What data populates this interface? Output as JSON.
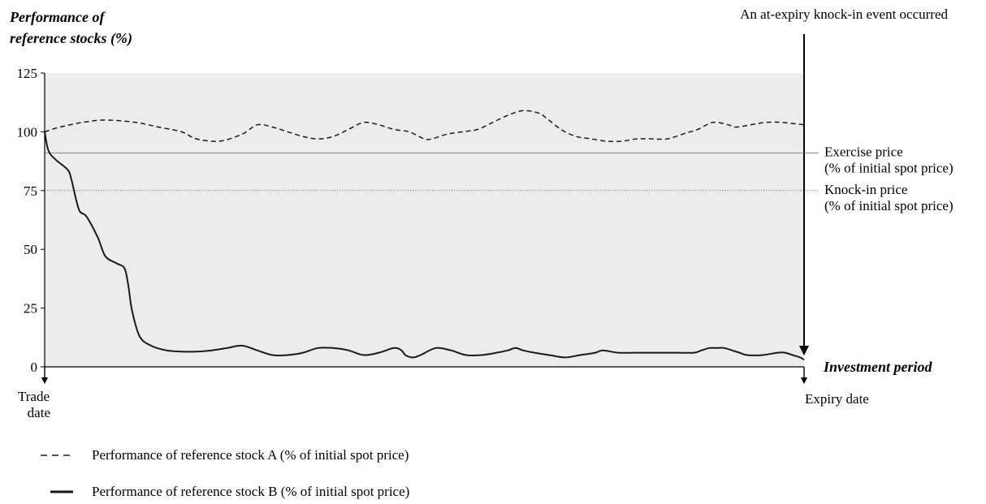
{
  "chart_data": {
    "type": "line",
    "ylabel_lines": [
      "Performance of",
      "reference stocks (%)"
    ],
    "xlabel": "Investment period",
    "yticks": [
      0,
      25,
      50,
      75,
      100,
      125
    ],
    "ylim": [
      0,
      125
    ],
    "xlim": [
      0,
      100
    ],
    "x_endpoint_labels": {
      "start": [
        "Trade",
        "date"
      ],
      "end": [
        "Expiry date"
      ]
    },
    "reference_lines": [
      {
        "name": "exercise",
        "value": 91,
        "label_lines": [
          "Exercise price",
          "(% of initial spot price)"
        ]
      },
      {
        "name": "knockin",
        "value": 75,
        "label_lines": [
          "Knock-in price",
          "(% of initial spot price)"
        ]
      }
    ],
    "annotation": {
      "text": "An at-expiry knock-in event occurred",
      "x": 100
    },
    "grid": false,
    "series": [
      {
        "name": "Performance of reference stock A (% of initial spot price)",
        "style": "dashed",
        "x": [
          0,
          2,
          5,
          8,
          12,
          15,
          18,
          20,
          23,
          26,
          28,
          30,
          32,
          34,
          36,
          38,
          40,
          42,
          44,
          46,
          48,
          50,
          51,
          53,
          55,
          57,
          59,
          61,
          63,
          65,
          66,
          68,
          70,
          72,
          74,
          76,
          78,
          80,
          82,
          84,
          85,
          86,
          88,
          90,
          91,
          93,
          95,
          97,
          100
        ],
        "y": [
          100,
          102,
          104,
          105,
          104,
          102,
          100,
          97,
          96,
          99,
          103,
          102,
          100,
          98,
          97,
          98,
          101,
          104,
          103,
          101,
          100,
          97,
          97,
          99,
          100,
          101,
          104,
          107,
          109,
          108,
          106,
          101,
          98,
          97,
          96,
          96,
          97,
          97,
          97,
          99,
          100,
          101,
          104,
          103,
          102,
          103,
          104,
          104,
          103
        ]
      },
      {
        "name": "Performance of reference stock B (% of initial spot price)",
        "style": "solid",
        "x": [
          0,
          0.5,
          1.5,
          3,
          3.5,
          4.5,
          5.5,
          7,
          8,
          9.5,
          10.5,
          11,
          11.5,
          12.5,
          14,
          16,
          18,
          20,
          22,
          24,
          26,
          28,
          30,
          32,
          34,
          36,
          38,
          40,
          42,
          44,
          46,
          47,
          47.5,
          48.5,
          49.5,
          51.5,
          53.5,
          55.5,
          57.5,
          59.5,
          61,
          62,
          63,
          64.5,
          66.5,
          68.5,
          70.5,
          72.5,
          73.5,
          75.5,
          77.5,
          79.5,
          81.5,
          83.5,
          85.5,
          86.5,
          87.5,
          88.5,
          89.5,
          91.5,
          92.5,
          94.5,
          96.5,
          97.5,
          98.5,
          99.5,
          100
        ],
        "y": [
          100,
          92,
          88,
          84,
          80,
          67,
          64,
          55,
          47,
          44,
          42,
          35,
          24,
          13,
          9,
          7,
          6.5,
          6.5,
          7,
          8,
          9,
          7,
          5,
          5,
          6,
          8,
          8,
          7,
          5,
          6,
          8,
          7,
          5,
          4,
          5,
          8,
          7,
          5,
          5,
          6,
          7,
          8,
          7,
          6,
          5,
          4,
          5,
          6,
          7,
          6,
          6,
          6,
          6,
          6,
          6,
          7,
          8,
          8,
          8,
          6,
          5,
          5,
          6,
          6,
          5,
          4,
          3
        ]
      }
    ],
    "legend": {
      "position": "bottom-left"
    }
  },
  "colors": {
    "plot_background": "#ececec",
    "series": "#1a1a1a",
    "reference_line": "#888888",
    "axis": "#000000"
  }
}
